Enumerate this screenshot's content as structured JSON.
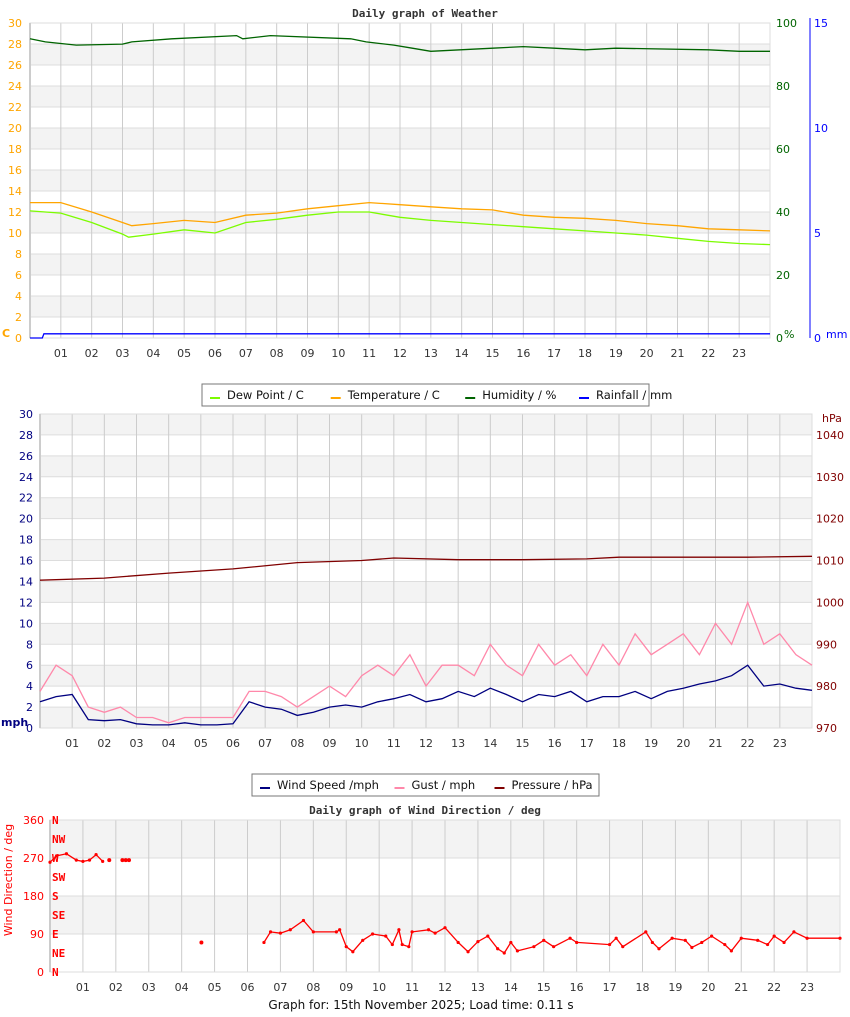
{
  "chart_data": [
    {
      "type": "line",
      "title": "Daily graph of Weather",
      "x_ticks": [
        "01",
        "02",
        "03",
        "04",
        "05",
        "06",
        "07",
        "08",
        "09",
        "10",
        "11",
        "12",
        "13",
        "14",
        "15",
        "16",
        "17",
        "18",
        "19",
        "20",
        "21",
        "22",
        "23"
      ],
      "xlim": [
        0,
        24
      ],
      "axes": {
        "left": {
          "label": "C",
          "ylim": [
            0,
            30
          ],
          "ticks": [
            0,
            2,
            4,
            6,
            8,
            10,
            12,
            14,
            16,
            18,
            20,
            22,
            24,
            26,
            28,
            30
          ],
          "color": "#ffa500"
        },
        "right1": {
          "label": "%",
          "ylim": [
            0,
            100
          ],
          "ticks": [
            0,
            20,
            40,
            60,
            80,
            100
          ],
          "color": "#006400"
        },
        "right2": {
          "label": "mm",
          "ylim": [
            0,
            15
          ],
          "ticks": [
            0,
            5,
            10,
            15
          ],
          "color": "#0000ff"
        }
      },
      "grid": true,
      "legend_placement": "bottom",
      "legend": [
        "Dew Point / C",
        "Temperature / C",
        "Humidity / %",
        "Rainfall / mm"
      ],
      "series": [
        {
          "name": "Dew Point / C",
          "axis": "left",
          "color": "#7cfc00",
          "x": [
            0,
            1,
            2,
            3,
            3.2,
            4,
            5,
            6,
            7,
            8,
            9,
            10,
            11,
            12,
            13,
            14,
            15,
            16,
            17,
            18,
            19,
            20,
            21,
            22,
            23,
            24
          ],
          "y": [
            12.1,
            11.9,
            11.0,
            9.9,
            9.6,
            9.9,
            10.3,
            10.0,
            11.0,
            11.3,
            11.7,
            12.0,
            12.0,
            11.5,
            11.2,
            11.0,
            10.8,
            10.6,
            10.4,
            10.2,
            10.0,
            9.8,
            9.5,
            9.2,
            9.0,
            8.9
          ]
        },
        {
          "name": "Temperature / C",
          "axis": "left",
          "color": "#ffa500",
          "x": [
            0,
            1,
            2,
            3,
            3.3,
            4,
            5,
            6,
            7,
            8,
            9,
            10,
            11,
            12,
            13,
            14,
            15,
            16,
            17,
            18,
            19,
            20,
            21,
            22,
            23,
            24
          ],
          "y": [
            12.9,
            12.9,
            12.0,
            11.0,
            10.7,
            10.9,
            11.2,
            11.0,
            11.7,
            11.9,
            12.3,
            12.6,
            12.9,
            12.7,
            12.5,
            12.3,
            12.2,
            11.7,
            11.5,
            11.4,
            11.2,
            10.9,
            10.7,
            10.4,
            10.3,
            10.2
          ]
        },
        {
          "name": "Humidity / %",
          "axis": "right1",
          "color": "#006400",
          "x": [
            0,
            0.5,
            1.5,
            3.0,
            3.3,
            4.6,
            6.7,
            6.9,
            7.8,
            10.4,
            10.9,
            11.8,
            12.4,
            13.0,
            15.0,
            16.0,
            17.0,
            18.0,
            19.0,
            22.0,
            23.0,
            24
          ],
          "y": [
            95,
            94,
            93,
            93.3,
            94,
            95,
            96,
            95,
            96,
            95,
            94,
            93,
            92,
            91,
            92,
            92.5,
            92,
            91.5,
            92,
            91.5,
            91,
            91
          ]
        },
        {
          "name": "Rainfall / mm",
          "axis": "right2",
          "color": "#0000ff",
          "x": [
            0,
            0.4,
            0.45,
            24
          ],
          "y": [
            0,
            0,
            0.2,
            0.2
          ]
        }
      ]
    },
    {
      "type": "line",
      "title": "",
      "x_ticks": [
        "01",
        "02",
        "03",
        "04",
        "05",
        "06",
        "07",
        "08",
        "09",
        "10",
        "11",
        "12",
        "13",
        "14",
        "15",
        "16",
        "17",
        "18",
        "19",
        "20",
        "21",
        "22",
        "23"
      ],
      "xlim": [
        0,
        24
      ],
      "axes": {
        "left": {
          "label": "mph",
          "ylim": [
            0,
            30
          ],
          "ticks": [
            0,
            2,
            4,
            6,
            8,
            10,
            12,
            14,
            16,
            18,
            20,
            22,
            24,
            26,
            28,
            30
          ],
          "color": "#000080"
        },
        "right": {
          "label": "hPa",
          "ylim": [
            970,
            1045
          ],
          "ticks": [
            970,
            980,
            990,
            1000,
            1010,
            1020,
            1030,
            1040
          ],
          "color": "#800000"
        }
      },
      "grid": true,
      "legend_placement": "bottom",
      "legend": [
        "Wind Speed /mph",
        "Gust / mph",
        "Pressure / hPa"
      ],
      "series": [
        {
          "name": "Gust / mph",
          "axis": "left",
          "color": "#ff88aa",
          "x": [
            0,
            0.5,
            1,
            1.5,
            2,
            2.5,
            3,
            3.5,
            4,
            4.5,
            5,
            5.5,
            6,
            6.5,
            7,
            7.5,
            8,
            8.5,
            9,
            9.5,
            10,
            10.5,
            11,
            11.5,
            12,
            12.5,
            13,
            13.5,
            14,
            14.5,
            15,
            15.5,
            16,
            16.5,
            17,
            17.5,
            18,
            18.5,
            19,
            19.5,
            20,
            20.5,
            21,
            21.5,
            22,
            22.5,
            23,
            23.5,
            24
          ],
          "y": [
            3.5,
            6,
            5,
            2,
            1.5,
            2,
            1,
            1,
            0.5,
            1,
            1,
            1,
            1,
            3.5,
            3.5,
            3,
            2,
            3,
            4,
            3,
            5,
            6,
            5,
            7,
            4,
            6,
            6,
            5,
            8,
            6,
            5,
            8,
            6,
            7,
            5,
            8,
            6,
            9,
            7,
            8,
            9,
            7,
            10,
            8,
            12,
            8,
            9,
            7,
            6
          ]
        },
        {
          "name": "Wind Speed /mph",
          "axis": "left",
          "color": "#000080",
          "x": [
            0,
            0.5,
            1,
            1.5,
            2,
            2.5,
            3,
            3.5,
            4,
            4.5,
            5,
            5.5,
            6,
            6.5,
            7,
            7.5,
            8,
            8.5,
            9,
            9.5,
            10,
            10.5,
            11,
            11.5,
            12,
            12.5,
            13,
            13.5,
            14,
            14.5,
            15,
            15.5,
            16,
            16.5,
            17,
            17.5,
            18,
            18.5,
            19,
            19.5,
            20,
            20.5,
            21,
            21.5,
            22,
            22.5,
            23,
            23.5,
            24
          ],
          "y": [
            2.5,
            3.0,
            3.2,
            0.8,
            0.7,
            0.8,
            0.4,
            0.3,
            0.3,
            0.5,
            0.3,
            0.3,
            0.4,
            2.5,
            2.0,
            1.8,
            1.2,
            1.5,
            2.0,
            2.2,
            2.0,
            2.5,
            2.8,
            3.2,
            2.5,
            2.8,
            3.5,
            3.0,
            3.8,
            3.2,
            2.5,
            3.2,
            3.0,
            3.5,
            2.5,
            3.0,
            3.0,
            3.5,
            2.8,
            3.5,
            3.8,
            4.2,
            4.5,
            5.0,
            6.0,
            4.0,
            4.2,
            3.8,
            3.6
          ]
        },
        {
          "name": "Pressure / hPa",
          "axis": "right",
          "color": "#800000",
          "x": [
            0,
            2,
            4,
            6,
            8,
            10,
            11,
            13,
            15,
            17,
            18,
            20,
            22,
            24
          ],
          "y": [
            1005.3,
            1005.8,
            1007,
            1008,
            1009.5,
            1010,
            1010.6,
            1010.2,
            1010.2,
            1010.4,
            1010.8,
            1010.8,
            1010.8,
            1011
          ]
        }
      ]
    },
    {
      "type": "scatter",
      "title": "Daily graph of Wind Direction / deg",
      "ylabel": "Wind Direction / deg",
      "x_ticks": [
        "01",
        "02",
        "03",
        "04",
        "05",
        "06",
        "07",
        "08",
        "09",
        "10",
        "11",
        "12",
        "13",
        "14",
        "15",
        "16",
        "17",
        "18",
        "19",
        "20",
        "21",
        "22",
        "23"
      ],
      "xlim": [
        0,
        24
      ],
      "ylim": [
        0,
        360
      ],
      "y_ticks": [
        0,
        90,
        180,
        270,
        360
      ],
      "compass_labels": [
        "N",
        "NE",
        "E",
        "SE",
        "S",
        "SW",
        "W",
        "NW",
        "N"
      ],
      "grid": true,
      "color": "#ff0000",
      "segments": [
        {
          "x": [
            0,
            0.2,
            0.5,
            0.8,
            1.0,
            1.2,
            1.4,
            1.6
          ],
          "y": [
            260,
            275,
            280,
            265,
            262,
            265,
            278,
            262
          ]
        },
        {
          "x": [
            6.5,
            6.7,
            7.0,
            7.3,
            7.7,
            8.0,
            8.7,
            8.8,
            9.0,
            9.2,
            9.5,
            9.8,
            10.2,
            10.4,
            10.6,
            10.7,
            10.9,
            11.0,
            11.5,
            11.7,
            12.0,
            12.4,
            12.7,
            13.0,
            13.3,
            13.6,
            13.8,
            14.0,
            14.2,
            14.7,
            15.0,
            15.3,
            15.8,
            16.0,
            17.0,
            17.2,
            17.4,
            18.1,
            18.3,
            18.5,
            18.9,
            19.3,
            19.5,
            19.8,
            20.1,
            20.5,
            20.7,
            21.0,
            21.5,
            21.8,
            22.0,
            22.3,
            22.6,
            23.0,
            24.0
          ],
          "y": [
            70,
            95,
            92,
            100,
            122,
            95,
            95,
            100,
            60,
            48,
            75,
            90,
            85,
            65,
            100,
            65,
            60,
            95,
            100,
            92,
            105,
            70,
            48,
            72,
            85,
            55,
            45,
            70,
            50,
            60,
            75,
            60,
            80,
            70,
            65,
            80,
            60,
            95,
            70,
            55,
            80,
            75,
            58,
            70,
            85,
            65,
            50,
            80,
            75,
            65,
            85,
            70,
            95,
            80,
            80
          ]
        }
      ],
      "points": {
        "x": [
          1.8,
          2.2,
          2.3,
          2.4,
          4.6
        ],
        "y": [
          265,
          265,
          265,
          265,
          70
        ]
      }
    }
  ],
  "footer": "Graph for: 15th November 2025; Load time: 0.11 s"
}
